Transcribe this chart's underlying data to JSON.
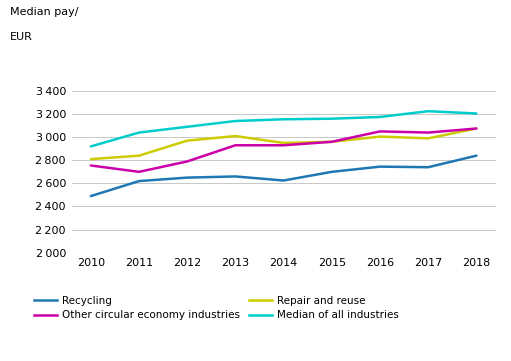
{
  "years": [
    2010,
    2011,
    2012,
    2013,
    2014,
    2015,
    2016,
    2017,
    2018
  ],
  "recycling": [
    2490,
    2620,
    2650,
    2660,
    2625,
    2700,
    2745,
    2740,
    2840
  ],
  "repair_and_reuse": [
    2810,
    2840,
    2970,
    3010,
    2950,
    2960,
    3005,
    2990,
    3075
  ],
  "other_circular": [
    2755,
    2700,
    2790,
    2930,
    2930,
    2960,
    3050,
    3040,
    3075
  ],
  "median_all": [
    2920,
    3040,
    3090,
    3140,
    3155,
    3160,
    3175,
    3225,
    3205
  ],
  "colors": {
    "recycling": "#1F78B4",
    "repair_and_reuse": "#CCCC00",
    "other_circular": "#CC00AA",
    "median_all": "#00CCCC"
  },
  "ylabel_line1": "Median pay/",
  "ylabel_line2": "EUR",
  "ylim": [
    2000,
    3500
  ],
  "yticks": [
    2000,
    2200,
    2400,
    2600,
    2800,
    3000,
    3200,
    3400
  ],
  "background_color": "#ffffff",
  "grid_color": "#c8c8c8",
  "line_width": 1.8
}
